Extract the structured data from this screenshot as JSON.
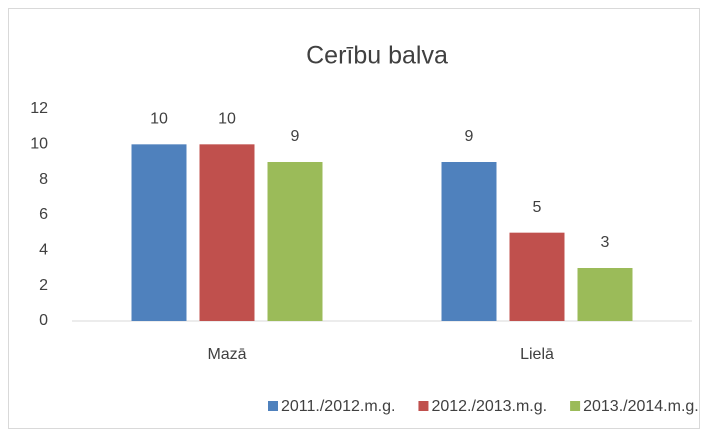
{
  "chart_data": {
    "type": "bar",
    "title": "Cerību balva",
    "categories": [
      "Mazā",
      "Lielā"
    ],
    "series": [
      {
        "name": "2011./2012.m.g.",
        "color": "#4f81bd",
        "values": [
          10,
          9
        ]
      },
      {
        "name": "2012./2013.m.g.",
        "color": "#c0504d",
        "values": [
          10,
          5
        ]
      },
      {
        "name": "2013./2014.m.g.",
        "color": "#9bbb59",
        "values": [
          9,
          3
        ]
      }
    ],
    "ylim": [
      0,
      12
    ],
    "yticks": [
      0,
      2,
      4,
      6,
      8,
      10,
      12
    ],
    "grid": false,
    "data_labels": true,
    "legend": "bottom"
  }
}
